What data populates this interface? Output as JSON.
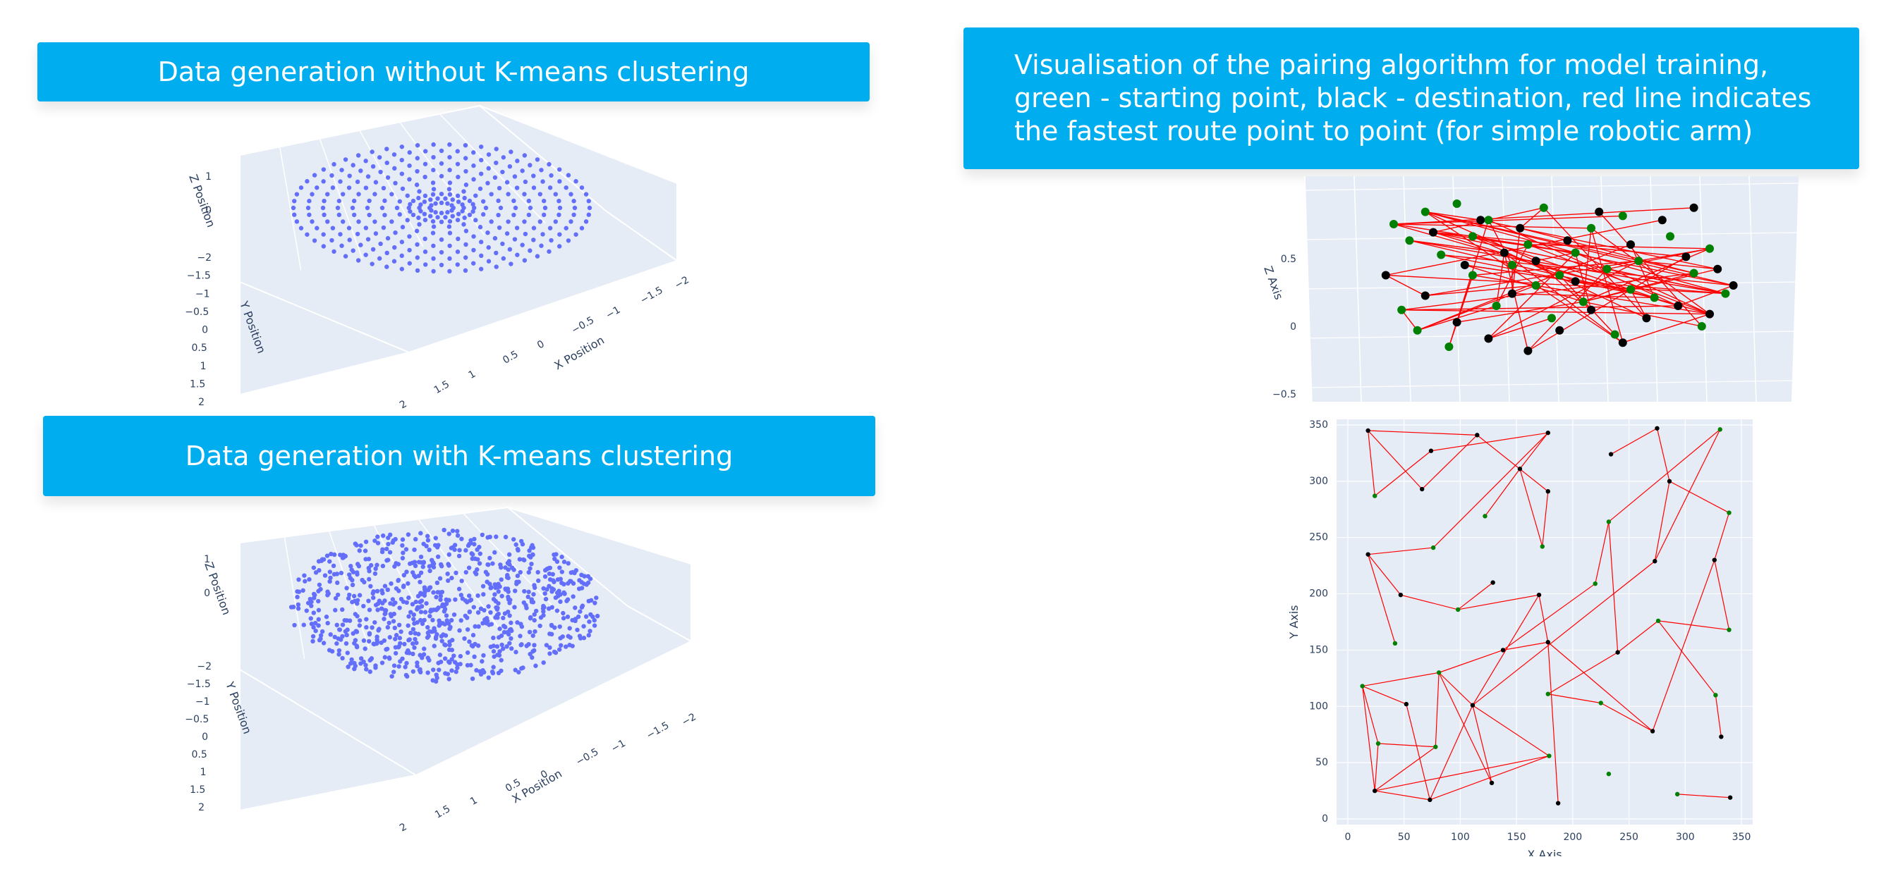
{
  "banners": {
    "without": "Data generation without K-means clustering",
    "with": "Data generation with K-means clustering",
    "pairing": "Visualisation of the pairing algorithm for model training, green - starting point, black - destination, red line indicates the fastest route point to point (for simple robotic arm)"
  },
  "colors": {
    "banner_bg": "#00ADEE",
    "banner_text": "#FFFFFF",
    "plot_bg": "#E5ECF6",
    "scatter": "#636EFA",
    "start_point": "#008000",
    "destination_point": "#000000",
    "route_line": "#FF0000"
  },
  "chart_data": [
    {
      "type": "scatter",
      "subtype": "scatter3d",
      "title": "",
      "xlabel": "X Position",
      "ylabel": "Y Position",
      "zlabel": "Z Position",
      "x_ticks": [
        "2",
        "1.5",
        "1",
        "0.5",
        "0",
        "−0.5",
        "−1",
        "−1.5",
        "−2"
      ],
      "y_ticks": [
        "−2",
        "−1.5",
        "−1",
        "−0.5",
        "0",
        "0.5",
        "1",
        "1.5",
        "2"
      ],
      "z_ticks": [
        "1",
        "0"
      ],
      "xlim": [
        -2,
        2
      ],
      "ylim": [
        -2,
        2
      ],
      "zlim": [
        -2,
        1.5
      ],
      "distribution": "concentric rings on a disc",
      "rings": [
        {
          "radius": 0.08,
          "count": 12
        },
        {
          "radius": 0.15,
          "count": 18
        },
        {
          "radius": 0.22,
          "count": 24
        },
        {
          "radius": 0.3,
          "count": 18
        },
        {
          "radius": 0.4,
          "count": 22
        },
        {
          "radius": 0.5,
          "count": 28
        },
        {
          "radius": 0.6,
          "count": 34
        },
        {
          "radius": 0.7,
          "count": 40
        },
        {
          "radius": 0.8,
          "count": 46
        },
        {
          "radius": 0.9,
          "count": 52
        },
        {
          "radius": 1.0,
          "count": 58
        }
      ]
    },
    {
      "type": "scatter",
      "subtype": "scatter3d",
      "title": "",
      "xlabel": "X Position",
      "ylabel": "Y Position",
      "zlabel": "Z Position",
      "x_ticks": [
        "2",
        "1.5",
        "1",
        "0.5",
        "0",
        "−0.5",
        "−1",
        "−1.5",
        "−2"
      ],
      "y_ticks": [
        "−2",
        "−1.5",
        "−1",
        "−0.5",
        "0",
        "0.5",
        "1",
        "1.5",
        "2"
      ],
      "z_ticks": [
        "1",
        "0"
      ],
      "xlim": [
        -2,
        2
      ],
      "ylim": [
        -2,
        2
      ],
      "zlim": [
        -2,
        1.5
      ],
      "distribution": "random points filling a disc, denser near center",
      "point_count": 850
    },
    {
      "type": "scatter",
      "subtype": "scatter3d",
      "title": "",
      "zlabel": "Z Axis",
      "z_ticks": [
        "0.5",
        "0",
        "−0.5"
      ],
      "series": [
        {
          "name": "green",
          "color": "#008000",
          "points": [
            [
              0.1,
              0.8
            ],
            [
              0.14,
              0.72
            ],
            [
              0.18,
              0.86
            ],
            [
              0.22,
              0.65
            ],
            [
              0.26,
              0.9
            ],
            [
              0.3,
              0.74
            ],
            [
              0.34,
              0.82
            ],
            [
              0.4,
              0.6
            ],
            [
              0.44,
              0.7
            ],
            [
              0.48,
              0.88
            ],
            [
              0.52,
              0.55
            ],
            [
              0.56,
              0.66
            ],
            [
              0.6,
              0.78
            ],
            [
              0.64,
              0.58
            ],
            [
              0.68,
              0.84
            ],
            [
              0.72,
              0.62
            ],
            [
              0.8,
              0.74
            ],
            [
              0.86,
              0.56
            ],
            [
              0.9,
              0.68
            ],
            [
              0.12,
              0.38
            ],
            [
              0.16,
              0.28
            ],
            [
              0.24,
              0.2
            ],
            [
              0.36,
              0.4
            ],
            [
              0.5,
              0.34
            ],
            [
              0.58,
              0.42
            ],
            [
              0.66,
              0.26
            ],
            [
              0.76,
              0.44
            ],
            [
              0.88,
              0.3
            ],
            [
              0.94,
              0.46
            ],
            [
              0.3,
              0.55
            ],
            [
              0.46,
              0.5
            ],
            [
              0.7,
              0.48
            ]
          ]
        },
        {
          "name": "black",
          "color": "#000000",
          "points": [
            [
              0.08,
              0.55
            ],
            [
              0.2,
              0.76
            ],
            [
              0.28,
              0.6
            ],
            [
              0.32,
              0.82
            ],
            [
              0.38,
              0.66
            ],
            [
              0.42,
              0.78
            ],
            [
              0.46,
              0.62
            ],
            [
              0.54,
              0.72
            ],
            [
              0.62,
              0.86
            ],
            [
              0.7,
              0.7
            ],
            [
              0.78,
              0.82
            ],
            [
              0.84,
              0.64
            ],
            [
              0.92,
              0.58
            ],
            [
              0.18,
              0.45
            ],
            [
              0.26,
              0.32
            ],
            [
              0.34,
              0.24
            ],
            [
              0.44,
              0.18
            ],
            [
              0.52,
              0.28
            ],
            [
              0.6,
              0.38
            ],
            [
              0.68,
              0.22
            ],
            [
              0.74,
              0.34
            ],
            [
              0.82,
              0.4
            ],
            [
              0.9,
              0.36
            ],
            [
              0.96,
              0.5
            ],
            [
              0.4,
              0.46
            ],
            [
              0.56,
              0.52
            ],
            [
              0.86,
              0.88
            ]
          ]
        }
      ],
      "route_color": "#FF0000"
    },
    {
      "type": "scatter",
      "subtype": "route-pairing",
      "title": "",
      "xlabel": "X Axis",
      "ylabel": "Y Axis",
      "xlim": [
        -10,
        360
      ],
      "ylim": [
        -5,
        355
      ],
      "x_ticks": [
        "0",
        "50",
        "100",
        "150",
        "200",
        "250",
        "300",
        "350"
      ],
      "y_ticks": [
        "0",
        "50",
        "100",
        "150",
        "200",
        "250",
        "300",
        "350"
      ],
      "series": [
        {
          "name": "green",
          "color": "#008000",
          "points": [
            [
              24,
              287
            ],
            [
              76,
              241
            ],
            [
              122,
              269
            ],
            [
              173,
              242
            ],
            [
              98,
              186
            ],
            [
              220,
              209
            ],
            [
              232,
              264
            ],
            [
              339,
              272
            ],
            [
              331,
              346
            ],
            [
              276,
              176
            ],
            [
              339,
              168
            ],
            [
              42,
              156
            ],
            [
              13,
              118
            ],
            [
              81,
              130
            ],
            [
              178,
              111
            ],
            [
              225,
              103
            ],
            [
              27,
              67
            ],
            [
              78,
              64
            ],
            [
              179,
              56
            ],
            [
              232,
              40
            ],
            [
              327,
              110
            ],
            [
              293,
              22
            ]
          ]
        },
        {
          "name": "black",
          "color": "#000000",
          "points": [
            [
              18,
              345
            ],
            [
              66,
              293
            ],
            [
              74,
              327
            ],
            [
              115,
              341
            ],
            [
              153,
              311
            ],
            [
              178,
              343
            ],
            [
              178,
              291
            ],
            [
              234,
              324
            ],
            [
              275,
              347
            ],
            [
              286,
              300
            ],
            [
              273,
              229
            ],
            [
              326,
              230
            ],
            [
              18,
              235
            ],
            [
              47,
              199
            ],
            [
              129,
              210
            ],
            [
              170,
              199
            ],
            [
              178,
              157
            ],
            [
              138,
              150
            ],
            [
              240,
              148
            ],
            [
              52,
              102
            ],
            [
              111,
              101
            ],
            [
              24,
              25
            ],
            [
              73,
              17
            ],
            [
              128,
              32
            ],
            [
              187,
              14
            ],
            [
              271,
              78
            ],
            [
              332,
              73
            ],
            [
              340,
              19
            ]
          ]
        }
      ],
      "routes": [
        [
          [
            18,
            345
          ],
          [
            66,
            293
          ]
        ],
        [
          [
            18,
            345
          ],
          [
            115,
            341
          ]
        ],
        [
          [
            18,
            345
          ],
          [
            24,
            287
          ]
        ],
        [
          [
            24,
            287
          ],
          [
            74,
            327
          ]
        ],
        [
          [
            74,
            327
          ],
          [
            178,
            343
          ]
        ],
        [
          [
            178,
            343
          ],
          [
            153,
            311
          ]
        ],
        [
          [
            153,
            311
          ],
          [
            122,
            269
          ]
        ],
        [
          [
            153,
            311
          ],
          [
            173,
            242
          ]
        ],
        [
          [
            178,
            343
          ],
          [
            76,
            241
          ]
        ],
        [
          [
            115,
            341
          ],
          [
            178,
            291
          ]
        ],
        [
          [
            178,
            291
          ],
          [
            173,
            242
          ]
        ],
        [
          [
            115,
            341
          ],
          [
            66,
            293
          ]
        ],
        [
          [
            76,
            241
          ],
          [
            18,
            235
          ]
        ],
        [
          [
            18,
            235
          ],
          [
            42,
            156
          ]
        ],
        [
          [
            18,
            235
          ],
          [
            47,
            199
          ]
        ],
        [
          [
            47,
            199
          ],
          [
            98,
            186
          ]
        ],
        [
          [
            98,
            186
          ],
          [
            129,
            210
          ]
        ],
        [
          [
            98,
            186
          ],
          [
            170,
            199
          ]
        ],
        [
          [
            170,
            199
          ],
          [
            178,
            157
          ]
        ],
        [
          [
            178,
            157
          ],
          [
            138,
            150
          ]
        ],
        [
          [
            170,
            199
          ],
          [
            111,
            101
          ]
        ],
        [
          [
            220,
            209
          ],
          [
            138,
            150
          ]
        ],
        [
          [
            220,
            209
          ],
          [
            232,
            264
          ]
        ],
        [
          [
            232,
            264
          ],
          [
            240,
            148
          ]
        ],
        [
          [
            234,
            324
          ],
          [
            275,
            347
          ]
        ],
        [
          [
            275,
            347
          ],
          [
            286,
            300
          ]
        ],
        [
          [
            286,
            300
          ],
          [
            339,
            272
          ]
        ],
        [
          [
            331,
            346
          ],
          [
            232,
            264
          ]
        ],
        [
          [
            331,
            346
          ],
          [
            273,
            229
          ]
        ],
        [
          [
            286,
            300
          ],
          [
            273,
            229
          ]
        ],
        [
          [
            339,
            272
          ],
          [
            326,
            230
          ]
        ],
        [
          [
            326,
            230
          ],
          [
            339,
            168
          ]
        ],
        [
          [
            273,
            229
          ],
          [
            111,
            101
          ]
        ],
        [
          [
            276,
            176
          ],
          [
            339,
            168
          ]
        ],
        [
          [
            276,
            176
          ],
          [
            240,
            148
          ]
        ],
        [
          [
            276,
            176
          ],
          [
            327,
            110
          ]
        ],
        [
          [
            240,
            148
          ],
          [
            178,
            111
          ]
        ],
        [
          [
            178,
            111
          ],
          [
            225,
            103
          ]
        ],
        [
          [
            225,
            103
          ],
          [
            271,
            78
          ]
        ],
        [
          [
            178,
            157
          ],
          [
            271,
            78
          ]
        ],
        [
          [
            326,
            230
          ],
          [
            271,
            78
          ]
        ],
        [
          [
            327,
            110
          ],
          [
            332,
            73
          ]
        ],
        [
          [
            293,
            22
          ],
          [
            340,
            19
          ]
        ],
        [
          [
            178,
            157
          ],
          [
            187,
            14
          ]
        ],
        [
          [
            138,
            150
          ],
          [
            81,
            130
          ]
        ],
        [
          [
            13,
            118
          ],
          [
            52,
            102
          ]
        ],
        [
          [
            13,
            118
          ],
          [
            81,
            130
          ]
        ],
        [
          [
            13,
            118
          ],
          [
            27,
            67
          ]
        ],
        [
          [
            13,
            118
          ],
          [
            24,
            25
          ]
        ],
        [
          [
            81,
            130
          ],
          [
            78,
            64
          ]
        ],
        [
          [
            81,
            130
          ],
          [
            128,
            32
          ]
        ],
        [
          [
            81,
            130
          ],
          [
            111,
            101
          ]
        ],
        [
          [
            111,
            101
          ],
          [
            128,
            32
          ]
        ],
        [
          [
            111,
            101
          ],
          [
            73,
            17
          ]
        ],
        [
          [
            111,
            101
          ],
          [
            179,
            56
          ]
        ],
        [
          [
            27,
            67
          ],
          [
            78,
            64
          ]
        ],
        [
          [
            27,
            67
          ],
          [
            24,
            25
          ]
        ],
        [
          [
            78,
            64
          ],
          [
            24,
            25
          ]
        ],
        [
          [
            24,
            25
          ],
          [
            73,
            17
          ]
        ],
        [
          [
            24,
            25
          ],
          [
            179,
            56
          ]
        ],
        [
          [
            73,
            17
          ],
          [
            179,
            56
          ]
        ],
        [
          [
            52,
            102
          ],
          [
            73,
            17
          ]
        ]
      ]
    }
  ]
}
